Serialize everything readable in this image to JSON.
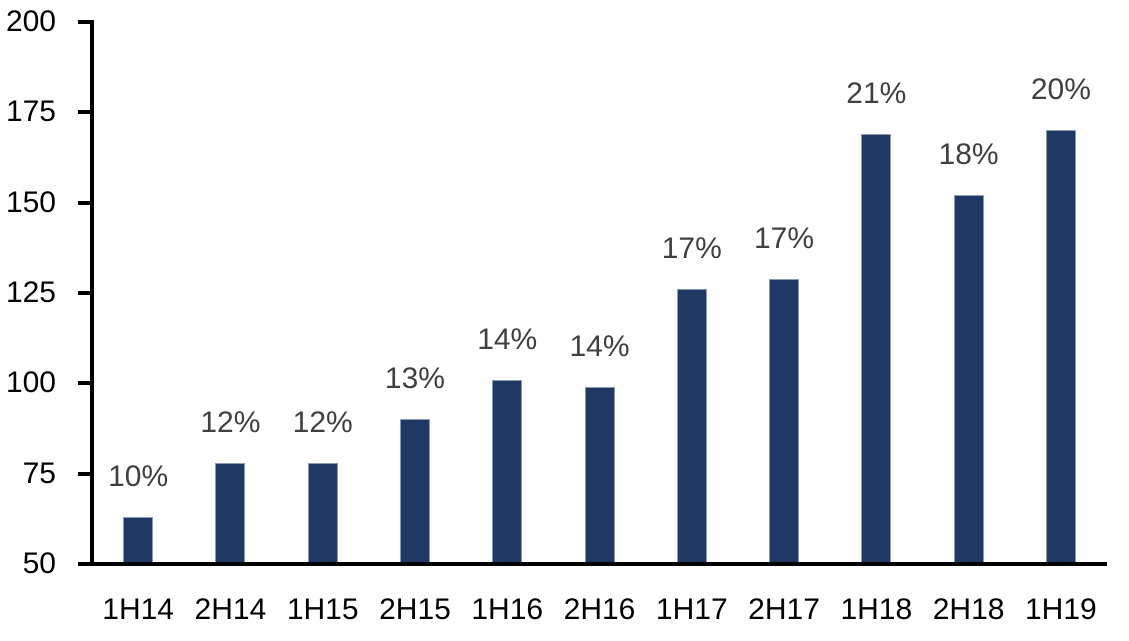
{
  "chart_data": {
    "type": "bar",
    "title": "",
    "xlabel": "",
    "ylabel": "",
    "categories": [
      "1H14",
      "2H14",
      "1H15",
      "2H15",
      "1H16",
      "2H16",
      "1H17",
      "2H17",
      "1H18",
      "2H18",
      "1H19"
    ],
    "values": [
      63,
      78,
      78,
      90,
      101,
      99,
      126,
      129,
      169,
      152,
      170
    ],
    "bar_labels": [
      "10%",
      "12%",
      "12%",
      "13%",
      "14%",
      "14%",
      "17%",
      "17%",
      "21%",
      "18%",
      "20%"
    ],
    "y_ticks": [
      200,
      175,
      150,
      125,
      100,
      75,
      50
    ],
    "ylim": [
      50,
      200
    ],
    "grid": "off",
    "legend": "none",
    "colors": {
      "bar_fill": "#1F3864",
      "bar_border": "#8B99B5",
      "data_label": "#404040",
      "axis": "#000000",
      "background": "#FFFFFF"
    }
  }
}
